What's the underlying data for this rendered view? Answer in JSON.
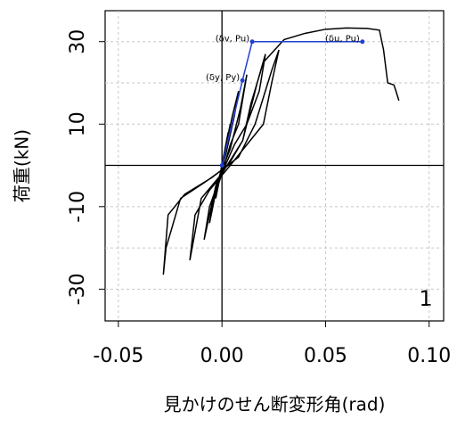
{
  "chart_data": {
    "type": "line",
    "x_label": "見かけのせん断変形角(rad)",
    "y_label": "荷重(kN)",
    "annotation": "1",
    "xlim": [
      -0.0564,
      0.107
    ],
    "ylim": [
      -37.7,
      37.5
    ],
    "xticks": [
      -0.05,
      {
        "value": 0,
        "label": "0.00"
      },
      0.05,
      {
        "value": 0.1,
        "label": "0.10"
      }
    ],
    "yticks": [
      -30,
      -10,
      10,
      30
    ],
    "ygrid": [
      -30,
      -20,
      -10,
      10,
      20,
      30
    ],
    "grid": true,
    "series": [
      {
        "color": "#000000",
        "x": [
          0,
          0.002,
          -0.001,
          0.003,
          -0.002,
          0.004,
          -0.003,
          0.005,
          0.008,
          0.006,
          0.002,
          -0.002,
          -0.006,
          -0.004,
          0,
          0.004,
          0.008,
          0.012,
          0.009,
          0.004,
          -0.003,
          -0.0086,
          -0.006,
          -0.001,
          0.006,
          0.012,
          0.018,
          0.021,
          0.017,
          0.01,
          0,
          -0.01,
          -0.0155,
          -0.013,
          -0.006,
          0.004,
          0.012,
          0.02,
          0.024,
          0.0275,
          0.024,
          0.016,
          0.008,
          -0.005,
          -0.018,
          -0.026,
          -0.0283,
          -0.027,
          -0.02,
          -0.008,
          0.003,
          0.01,
          0.014,
          0.02,
          0.03,
          0.04,
          0.05,
          0.06,
          0.07,
          0.076,
          0.078,
          0.08,
          0.083,
          0.084,
          0.0854
        ],
        "values": [
          0,
          5,
          -3,
          8,
          -5,
          10,
          -8,
          12,
          18,
          12,
          3,
          -4,
          -14,
          -8,
          -2,
          5,
          10,
          22,
          14,
          4,
          -5,
          -18,
          -10,
          -3,
          5,
          10,
          18,
          27,
          20,
          6,
          -2,
          -8,
          -23,
          -12,
          -6,
          0,
          5,
          10,
          20,
          28,
          23,
          10,
          2,
          -3,
          -7,
          -12,
          -26.5,
          -20,
          -8,
          -4,
          0,
          6,
          15,
          25,
          30.5,
          32,
          33,
          33.3,
          33.2,
          32.8,
          28,
          20,
          19.5,
          18,
          15.7
        ]
      },
      {
        "color": "#2040d0",
        "x": [
          0,
          0.0099,
          0.0146,
          0.0678
        ],
        "values": [
          0,
          20.6,
          30,
          30
        ],
        "point_labels": [
          null,
          "(δy, Py)",
          "(δv, Pu)",
          "(δu, Pu)"
        ]
      }
    ]
  }
}
